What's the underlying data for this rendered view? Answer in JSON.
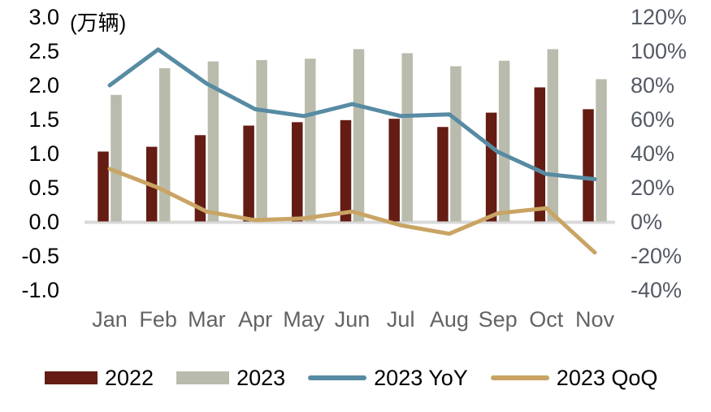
{
  "unit_label": "(万辆)",
  "chart_data": {
    "type": "combo_bar_line",
    "title": "",
    "grid": false,
    "legend_position": "bottom",
    "axis_line_color": "#d9d9d9",
    "categories": [
      "Jan",
      "Feb",
      "Mar",
      "Apr",
      "May",
      "Jun",
      "Jul",
      "Aug",
      "Sep",
      "Oct",
      "Nov"
    ],
    "series": [
      {
        "name": "2022",
        "type": "bar",
        "axis": "left",
        "color": "#641c13",
        "values": [
          1.03,
          1.1,
          1.27,
          1.41,
          1.46,
          1.49,
          1.51,
          1.39,
          1.6,
          1.97,
          1.65
        ]
      },
      {
        "name": "2023",
        "type": "bar",
        "axis": "left",
        "color": "#b9bcac",
        "values": [
          1.86,
          2.25,
          2.35,
          2.37,
          2.39,
          2.53,
          2.47,
          2.28,
          2.36,
          2.53,
          2.09
        ]
      },
      {
        "name": "2023 YoY",
        "type": "line",
        "axis": "right",
        "color": "#578ba3",
        "values": [
          80,
          101,
          81,
          66,
          62,
          69,
          62,
          63,
          41,
          28,
          25
        ]
      },
      {
        "name": "2023 QoQ",
        "type": "line",
        "axis": "right",
        "color": "#c9a464",
        "values": [
          31,
          20,
          6,
          1,
          2,
          6,
          -2,
          -7,
          5,
          8,
          -18
        ]
      }
    ],
    "left_axis": {
      "unit": "万辆",
      "min": -1.0,
      "max": 3.0,
      "ticks": [
        {
          "label": "3.0",
          "value": 3.0
        },
        {
          "label": "2.5",
          "value": 2.5
        },
        {
          "label": "2.0",
          "value": 2.0
        },
        {
          "label": "1.5",
          "value": 1.5
        },
        {
          "label": "1.0",
          "value": 1.0
        },
        {
          "label": "0.5",
          "value": 0.5
        },
        {
          "label": "0.0",
          "value": 0.0
        },
        {
          "label": "-0.5",
          "value": -0.5
        },
        {
          "label": "-1.0",
          "value": -1.0
        }
      ]
    },
    "right_axis": {
      "unit": "%",
      "min": -40,
      "max": 120,
      "ticks": [
        {
          "label": "120%",
          "value": 120
        },
        {
          "label": "100%",
          "value": 100
        },
        {
          "label": "80%",
          "value": 80
        },
        {
          "label": "60%",
          "value": 60
        },
        {
          "label": "40%",
          "value": 40
        },
        {
          "label": "20%",
          "value": 20
        },
        {
          "label": "0%",
          "value": 0
        },
        {
          "label": "-20%",
          "value": -20
        },
        {
          "label": "-40%",
          "value": -40
        }
      ]
    }
  },
  "legend": {
    "items": [
      {
        "label": "2022",
        "swatch": "bar",
        "color": "#641c13"
      },
      {
        "label": "2023",
        "swatch": "bar",
        "color": "#b9bcac"
      },
      {
        "label": "2023 YoY",
        "swatch": "line",
        "color": "#578ba3"
      },
      {
        "label": "2023 QoQ",
        "swatch": "line",
        "color": "#c9a464"
      }
    ]
  }
}
